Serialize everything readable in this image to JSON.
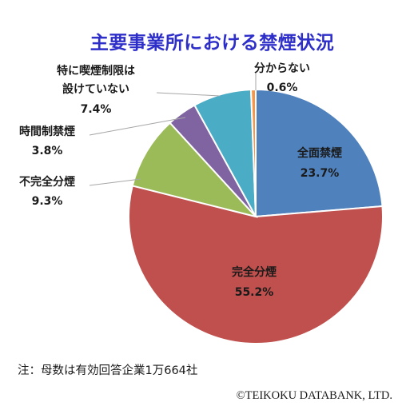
{
  "chart_data": {
    "type": "pie",
    "title": "主要事業所における禁煙状況",
    "slices": [
      {
        "name": "全面禁煙",
        "label": "全面禁煙",
        "value": 23.7,
        "value_label": "23.7%",
        "color": "#4f81bd"
      },
      {
        "name": "完全分煙",
        "label": "完全分煙",
        "value": 55.2,
        "value_label": "55.2%",
        "color": "#c0504d"
      },
      {
        "name": "不完全分煙",
        "label": "不完全分煙",
        "value": 9.3,
        "value_label": "9.3%",
        "color": "#9bbb59"
      },
      {
        "name": "時間制禁煙",
        "label": "時間制禁煙",
        "value": 3.8,
        "value_label": "3.8%",
        "color": "#8064a2"
      },
      {
        "name": "特に喫煙制限は設けていない",
        "label": "特に喫煙制限は\n設けていない",
        "value": 7.4,
        "value_label": "7.4%",
        "color": "#4bacc6"
      },
      {
        "name": "分からない",
        "label": "分からない",
        "value": 0.6,
        "value_label": "0.6%",
        "color": "#f79646"
      }
    ],
    "start_angle_deg": 0,
    "direction": "clockwise",
    "legend": "none"
  },
  "note": "注：母数は有効回答企業1万664社",
  "copyright": "©TEIKOKU DATABANK, LTD."
}
